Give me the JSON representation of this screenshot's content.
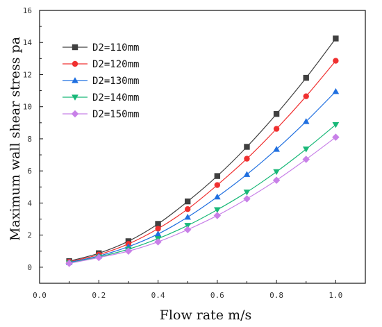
{
  "chart_data": {
    "type": "line",
    "xlabel": "Flow rate m/s",
    "ylabel": "Maximum wall shear stress pa",
    "xlim": [
      0.0,
      1.1
    ],
    "ylim": [
      -1,
      16
    ],
    "x_ticks": [
      "0.0",
      "0.2",
      "0.4",
      "0.6",
      "0.8",
      "1.0"
    ],
    "y_ticks": [
      "0",
      "2",
      "4",
      "6",
      "8",
      "10",
      "12",
      "14",
      "16"
    ],
    "grid": false,
    "legend_position": "top-left",
    "x": [
      0.1,
      0.2,
      0.3,
      0.4,
      0.5,
      0.6,
      0.7,
      0.8,
      0.9,
      1.0
    ],
    "series": [
      {
        "name": "D2=110mm",
        "color": "#404040",
        "marker": "square",
        "values": [
          0.38,
          0.87,
          1.62,
          2.7,
          4.1,
          5.68,
          7.5,
          9.55,
          11.8,
          14.25
        ]
      },
      {
        "name": "D2=120mm",
        "color": "#f03030",
        "marker": "circle",
        "values": [
          0.34,
          0.78,
          1.45,
          2.4,
          3.62,
          5.12,
          6.76,
          8.62,
          10.65,
          12.86
        ]
      },
      {
        "name": "D2=130mm",
        "color": "#1f6fe0",
        "marker": "triangle-up",
        "values": [
          0.3,
          0.7,
          1.28,
          2.07,
          3.12,
          4.38,
          5.78,
          7.35,
          9.08,
          10.95
        ]
      },
      {
        "name": "D2=140mm",
        "color": "#18b878",
        "marker": "triangle-down",
        "values": [
          0.26,
          0.64,
          1.12,
          1.78,
          2.6,
          3.58,
          4.68,
          5.95,
          7.36,
          8.88
        ]
      },
      {
        "name": "D2=150mm",
        "color": "#c880e8",
        "marker": "diamond",
        "values": [
          0.24,
          0.6,
          1.0,
          1.58,
          2.34,
          3.22,
          4.26,
          5.42,
          6.72,
          8.1
        ]
      }
    ]
  }
}
